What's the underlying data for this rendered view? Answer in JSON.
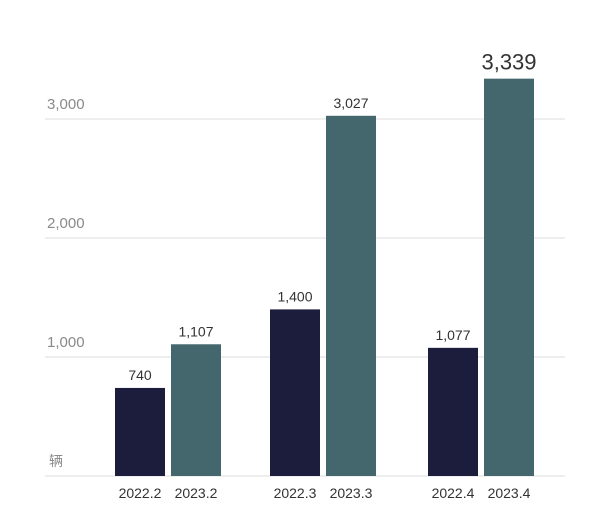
{
  "chart_data": {
    "type": "bar",
    "title": "",
    "xlabel": "",
    "ylabel": "",
    "unit": "辆",
    "ylim": [
      0,
      3600
    ],
    "yticks": [
      {
        "value": 1000,
        "label": "1,000"
      },
      {
        "value": 2000,
        "label": "2,000"
      },
      {
        "value": 3000,
        "label": "3,000"
      }
    ],
    "grid": true,
    "groups": [
      {
        "bars": [
          {
            "category": "2022.2",
            "value": 740,
            "label": "740",
            "color": "#1c1c3c"
          },
          {
            "category": "2023.2",
            "value": 1107,
            "label": "1,107",
            "color": "#44676d"
          }
        ]
      },
      {
        "bars": [
          {
            "category": "2022.3",
            "value": 1400,
            "label": "1,400",
            "color": "#1c1c3c"
          },
          {
            "category": "2023.3",
            "value": 3027,
            "label": "3,027",
            "color": "#44676d"
          }
        ]
      },
      {
        "bars": [
          {
            "category": "2022.4",
            "value": 1077,
            "label": "1,077",
            "color": "#1c1c3c"
          },
          {
            "category": "2023.4",
            "value": 3339,
            "label": "3,339",
            "color": "#44676d",
            "emphasis": true
          }
        ]
      }
    ]
  }
}
